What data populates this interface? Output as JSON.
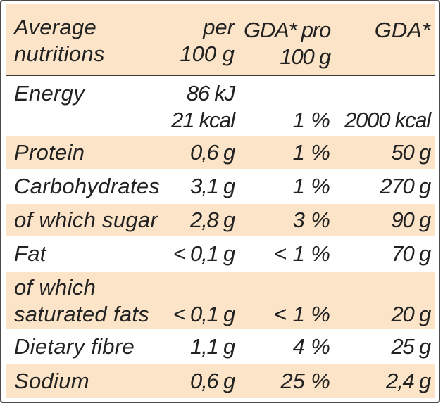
{
  "header": {
    "col1": [
      "Average",
      "nutritions"
    ],
    "col2": [
      "per",
      "100 g"
    ],
    "col3": [
      "GDA* pro",
      "100 g"
    ],
    "col4": [
      "GDA*",
      ""
    ]
  },
  "rows": [
    {
      "name": [
        "Energy",
        ""
      ],
      "per100": [
        "86 kJ",
        "21 kcal"
      ],
      "gda_pct": [
        "",
        "1 %"
      ],
      "gda": [
        "",
        "2000 kcal"
      ]
    },
    {
      "name": [
        "Protein"
      ],
      "per100": [
        "0,6 g"
      ],
      "gda_pct": [
        "1 %"
      ],
      "gda": [
        "50 g"
      ]
    },
    {
      "name": [
        "Carbohydrates"
      ],
      "per100": [
        "3,1 g"
      ],
      "gda_pct": [
        "1 %"
      ],
      "gda": [
        "270 g"
      ]
    },
    {
      "name": [
        "of which sugar"
      ],
      "per100": [
        "2,8 g"
      ],
      "gda_pct": [
        "3 %"
      ],
      "gda": [
        "90 g"
      ]
    },
    {
      "name": [
        "Fat"
      ],
      "per100": [
        "< 0,1 g"
      ],
      "gda_pct": [
        "< 1 %"
      ],
      "gda": [
        "70 g"
      ]
    },
    {
      "name": [
        "of which",
        "saturated fats"
      ],
      "per100": [
        "",
        "< 0,1 g"
      ],
      "gda_pct": [
        "",
        "< 1 %"
      ],
      "gda": [
        "",
        "20 g"
      ]
    },
    {
      "name": [
        "Dietary fibre"
      ],
      "per100": [
        "1,1 g"
      ],
      "gda_pct": [
        "4 %"
      ],
      "gda": [
        "25 g"
      ]
    },
    {
      "name": [
        "Sodium"
      ],
      "per100": [
        "0,6 g"
      ],
      "gda_pct": [
        "25 %"
      ],
      "gda": [
        "2,4 g"
      ]
    }
  ],
  "colors": {
    "shaded_row": "#fbe4c8",
    "border": "#4a4a4a",
    "text": "#222222"
  }
}
